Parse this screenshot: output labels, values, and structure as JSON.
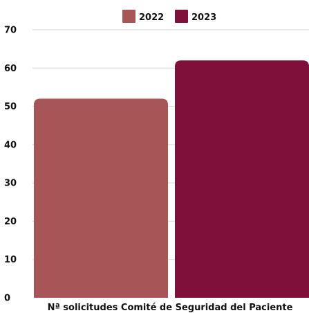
{
  "chart_data": {
    "type": "bar",
    "title": "",
    "xlabel": "",
    "ylabel": "",
    "categories": [
      "Nª solicitudes Comité de Seguridad del Paciente"
    ],
    "series": [
      {
        "name": "2022",
        "values": [
          52
        ],
        "color": "#a85558"
      },
      {
        "name": "2023",
        "values": [
          62
        ],
        "color": "#7f1039"
      }
    ],
    "ylim": [
      0,
      70
    ],
    "yticks": [
      0,
      10,
      20,
      30,
      40,
      50,
      60,
      70
    ],
    "grid": true,
    "legend_position": "top"
  }
}
